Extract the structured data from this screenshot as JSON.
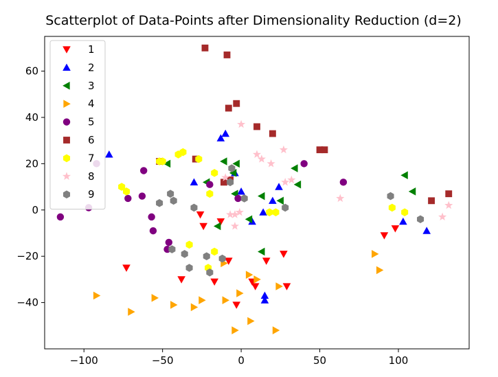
{
  "chart_data": {
    "type": "scatter",
    "title": "Scatterplot of Data-Points after Dimensionality Reduction (d=2)",
    "xlabel": "",
    "ylabel": "",
    "xlim": [
      -125,
      145
    ],
    "ylim": [
      -60,
      75
    ],
    "x_ticks": [
      -100,
      -50,
      0,
      50,
      100
    ],
    "y_ticks": [
      -40,
      -20,
      0,
      20,
      40,
      60
    ],
    "x_tick_labels": [
      "−100",
      "−50",
      "0",
      "50",
      "100"
    ],
    "y_tick_labels": [
      "−40",
      "−20",
      "0",
      "20",
      "40",
      "60"
    ],
    "grid": false,
    "legend_position": "top-left",
    "series": [
      {
        "name": "1",
        "marker": "triangle-down",
        "color": "#ff0000",
        "points": [
          [
            -73,
            -25
          ],
          [
            -38,
            -30
          ],
          [
            -26,
            -2
          ],
          [
            -24,
            -7
          ],
          [
            -17,
            -31
          ],
          [
            -13,
            -5
          ],
          [
            -8,
            -22
          ],
          [
            -3,
            -41
          ],
          [
            7,
            -31
          ],
          [
            9,
            -33
          ],
          [
            16,
            -22
          ],
          [
            27,
            -19
          ],
          [
            29,
            -33
          ],
          [
            91,
            -11
          ],
          [
            98,
            -8
          ]
        ]
      },
      {
        "name": "2",
        "marker": "triangle-up",
        "color": "#0000ff",
        "points": [
          [
            -84,
            24
          ],
          [
            -30,
            12
          ],
          [
            -13,
            31
          ],
          [
            -10,
            33
          ],
          [
            -4,
            16
          ],
          [
            0,
            8
          ],
          [
            7,
            -5
          ],
          [
            14,
            -1
          ],
          [
            15,
            -37
          ],
          [
            15,
            -39
          ],
          [
            20,
            4
          ],
          [
            24,
            10
          ],
          [
            103,
            -5
          ],
          [
            118,
            -9
          ]
        ]
      },
      {
        "name": "3",
        "marker": "triangle-left",
        "color": "#008000",
        "points": [
          [
            -47,
            20
          ],
          [
            -22,
            12
          ],
          [
            -15,
            -7
          ],
          [
            -11,
            21
          ],
          [
            -5,
            16
          ],
          [
            -3,
            20
          ],
          [
            -4,
            7
          ],
          [
            5,
            -4
          ],
          [
            13,
            6
          ],
          [
            13,
            -18
          ],
          [
            25,
            4
          ],
          [
            34,
            18
          ],
          [
            36,
            11
          ],
          [
            104,
            15
          ],
          [
            109,
            8
          ]
        ]
      },
      {
        "name": "4",
        "marker": "triangle-right",
        "color": "#ffa500",
        "points": [
          [
            -92,
            -37
          ],
          [
            -70,
            -44
          ],
          [
            -55,
            -38
          ],
          [
            -43,
            -41
          ],
          [
            -30,
            -42
          ],
          [
            -25,
            -39
          ],
          [
            -11,
            -23
          ],
          [
            -10,
            -39
          ],
          [
            -4,
            -52
          ],
          [
            -1,
            -36
          ],
          [
            5,
            -28
          ],
          [
            6,
            -48
          ],
          [
            10,
            -30
          ],
          [
            22,
            -52
          ],
          [
            24,
            -33
          ],
          [
            85,
            -19
          ],
          [
            88,
            -26
          ]
        ]
      },
      {
        "name": "5",
        "marker": "circle",
        "color": "#800080",
        "points": [
          [
            -115,
            -3
          ],
          [
            -97,
            1
          ],
          [
            -92,
            20
          ],
          [
            -72,
            5
          ],
          [
            -63,
            6
          ],
          [
            -62,
            17
          ],
          [
            -57,
            -3
          ],
          [
            -56,
            -9
          ],
          [
            -46,
            -14
          ],
          [
            -47,
            -17
          ],
          [
            -20,
            11
          ],
          [
            -2,
            5
          ],
          [
            40,
            20
          ],
          [
            65,
            12
          ]
        ]
      },
      {
        "name": "6",
        "marker": "square",
        "color": "#a52a2a",
        "points": [
          [
            -52,
            21
          ],
          [
            -29,
            22
          ],
          [
            -23,
            70
          ],
          [
            -9,
            67
          ],
          [
            -8,
            44
          ],
          [
            -3,
            46
          ],
          [
            -11,
            12
          ],
          [
            -7,
            13
          ],
          [
            10,
            36
          ],
          [
            20,
            33
          ],
          [
            50,
            26
          ],
          [
            53,
            26
          ],
          [
            121,
            4
          ],
          [
            132,
            7
          ]
        ]
      },
      {
        "name": "7",
        "marker": "hexagon",
        "color": "#ffff00",
        "points": [
          [
            -76,
            10
          ],
          [
            -73,
            8
          ],
          [
            -52,
            21
          ],
          [
            -50,
            21
          ],
          [
            -40,
            24
          ],
          [
            -37,
            25
          ],
          [
            -27,
            22
          ],
          [
            -33,
            -15
          ],
          [
            -20,
            7
          ],
          [
            -17,
            16
          ],
          [
            -21,
            -25
          ],
          [
            -17,
            -18
          ],
          [
            18,
            -1
          ],
          [
            22,
            -1
          ],
          [
            96,
            1
          ],
          [
            104,
            -1
          ]
        ]
      },
      {
        "name": "8",
        "marker": "star",
        "color": "#ffc0cb",
        "points": [
          [
            -10,
            14
          ],
          [
            -7,
            -2
          ],
          [
            -4,
            -2
          ],
          [
            -4,
            -7
          ],
          [
            -1,
            -1
          ],
          [
            0,
            37
          ],
          [
            10,
            24
          ],
          [
            13,
            22
          ],
          [
            19,
            20
          ],
          [
            27,
            26
          ],
          [
            28,
            12
          ],
          [
            32,
            13
          ],
          [
            63,
            5
          ],
          [
            128,
            -3
          ],
          [
            132,
            2
          ]
        ]
      },
      {
        "name": "9",
        "marker": "hexagon",
        "color": "#808080",
        "points": [
          [
            -52,
            3
          ],
          [
            -45,
            7
          ],
          [
            -43,
            4
          ],
          [
            -44,
            -17
          ],
          [
            -36,
            -19
          ],
          [
            -33,
            -25
          ],
          [
            -30,
            1
          ],
          [
            -22,
            -20
          ],
          [
            -20,
            -27
          ],
          [
            -12,
            -21
          ],
          [
            -6,
            18
          ],
          [
            -7,
            12
          ],
          [
            2,
            5
          ],
          [
            28,
            1
          ],
          [
            95,
            6
          ],
          [
            114,
            -4
          ]
        ]
      }
    ]
  }
}
